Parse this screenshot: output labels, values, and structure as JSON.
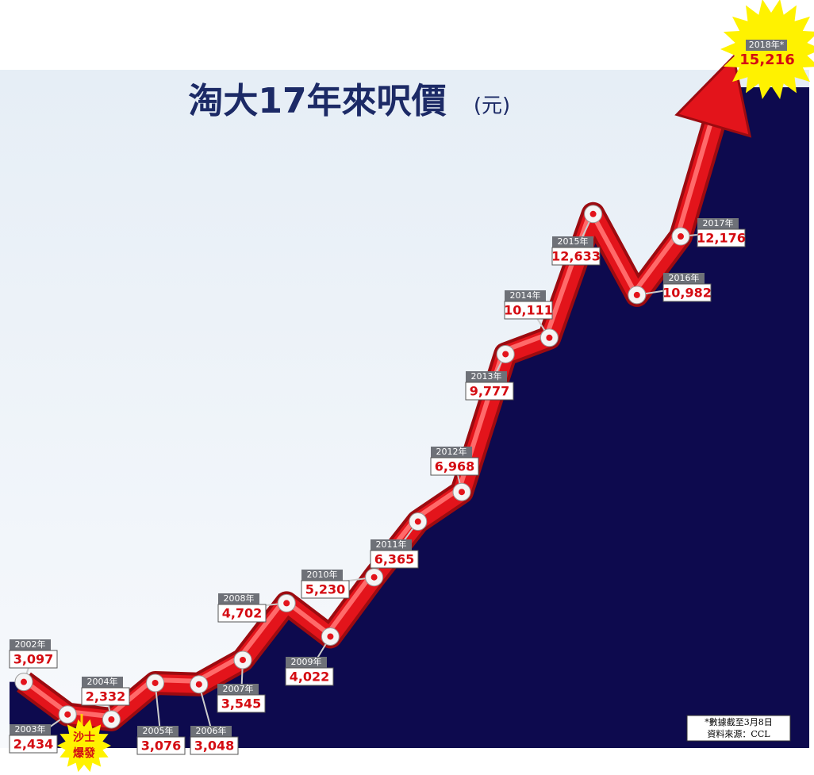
{
  "chart_data": {
    "type": "line",
    "title": "淘大17年來呎價",
    "subtitle": "(元)",
    "categories": [
      "2002年",
      "2003年",
      "2004年",
      "2005年",
      "2006年",
      "2007年",
      "2008年",
      "2009年",
      "2010年",
      "2011年",
      "2012年",
      "2013年",
      "2014年",
      "2015年",
      "2016年",
      "2017年",
      "2018年*"
    ],
    "values": [
      3097,
      2434,
      2332,
      3076,
      3048,
      3545,
      4702,
      4022,
      5230,
      6365,
      6968,
      9777,
      10111,
      12633,
      10982,
      12176,
      15216
    ],
    "value_labels": [
      "3,097",
      "2,434",
      "2,332",
      "3,076",
      "3,048",
      "3,545",
      "4,702",
      "4,022",
      "5,230",
      "6,365",
      "6,968",
      "9,777",
      "10,111",
      "12,633",
      "10,982",
      "12,176",
      "15,216"
    ],
    "color": "#e3141b",
    "annotations": [
      "沙士",
      "爆發"
    ],
    "notes": [
      "*數據截至3月8日",
      "資料來源：CCL"
    ]
  }
}
